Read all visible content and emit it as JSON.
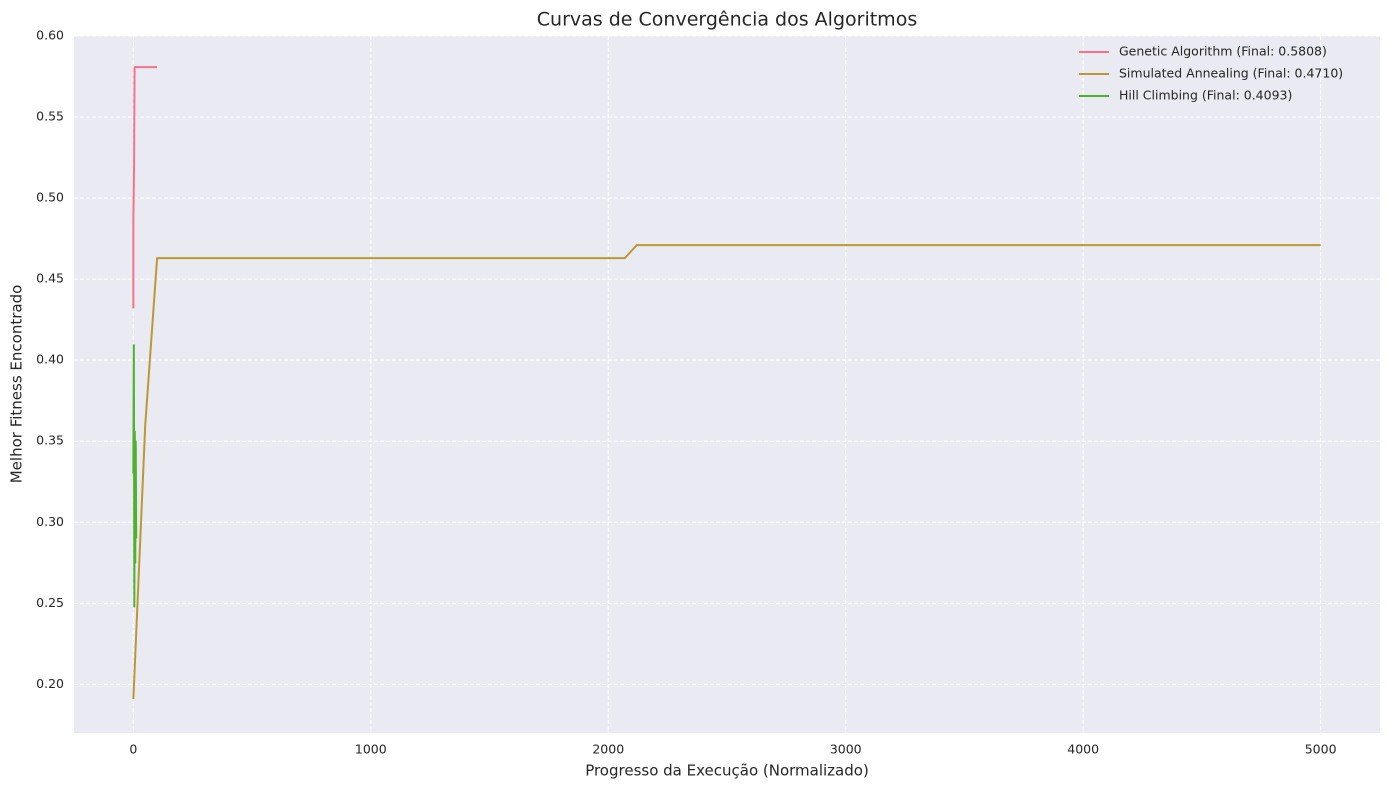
{
  "chart_data": {
    "type": "line",
    "title": "Curvas de Convergência dos Algoritmos",
    "x_label": "Progresso da Execução (Normalizado)",
    "y_label": "Melhor Fitness Encontrado",
    "xlim": [
      -250,
      5250
    ],
    "ylim": [
      0.17,
      0.6
    ],
    "xticks": [
      0,
      1000,
      2000,
      3000,
      4000,
      5000
    ],
    "yticks": [
      {
        "value": 0.2,
        "label": "0.20"
      },
      0.25,
      {
        "value": 0.3,
        "label": "0.30"
      },
      0.35,
      {
        "value": 0.4,
        "label": "0.40"
      },
      0.45,
      {
        "value": 0.5,
        "label": "0.50"
      },
      0.55,
      {
        "value": 0.6,
        "label": "0.60"
      }
    ],
    "grid": true,
    "legend": "upper right",
    "series": [
      {
        "name": "Genetic Algorithm (Final: 0.5808)",
        "color": "#f77189",
        "x": [
          0,
          0,
          2,
          3,
          5,
          100
        ],
        "values": [
          0.432,
          0.487,
          0.51,
          0.52,
          0.5808,
          0.5808
        ]
      },
      {
        "name": "Simulated Annealing (Final: 0.4710)",
        "color": "#bb9832",
        "x": [
          0,
          50,
          100,
          2070,
          2120,
          5000
        ],
        "values": [
          0.191,
          0.36,
          0.463,
          0.463,
          0.471,
          0.471
        ]
      },
      {
        "name": "Hill Climbing (Final: 0.4093)",
        "color": "#50b131",
        "x": [
          0,
          2,
          4,
          6,
          8,
          10,
          12
        ],
        "values": [
          0.33,
          0.4093,
          0.248,
          0.356,
          0.275,
          0.35,
          0.29
        ]
      }
    ]
  }
}
